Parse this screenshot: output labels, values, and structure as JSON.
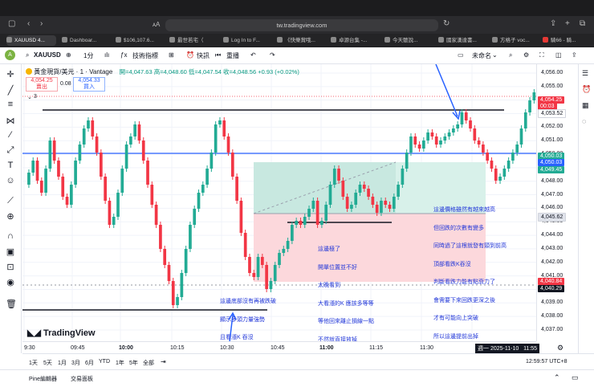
{
  "browser": {
    "url": "tw.tradingview.com",
    "tabs": [
      "XAUUSD 4...",
      "Dashboar...",
      "$106,107.6...",
      "最世若宅（",
      "Log In to F...",
      "《快樂賞哦...",
      "卓源台集 -...",
      "今天聽說...",
      "國家漢達書...",
      "方格子 voc...",
      "騎66 - 騎..."
    ]
  },
  "toolbar": {
    "symbol": "XAUUSD",
    "interval": "1分",
    "indicators": "技術指標",
    "alert": "快訊",
    "replay": "重播",
    "unnamed": "未命名"
  },
  "legend": {
    "title": "黃金現貨/美元 · 1 · Vantage",
    "ohlc": "開=4,047.63 高=4,048.60 低=4,047.54 收=4,048.56 +0.93 (+0.02%)",
    "sell_price": "4,054.25",
    "sell_label": "賣出",
    "spread": "0.08",
    "buy_price": "4,054.33",
    "buy_label": "買入",
    "indicator_count": "3"
  },
  "price_axis": {
    "ticks": [
      "4,056.00",
      "4,055.00",
      "4,054.00",
      "4,053.00",
      "4,052.00",
      "4,051.00",
      "4,050.00",
      "4,049.00",
      "4,048.00",
      "4,047.00",
      "4,046.00",
      "4,045.00",
      "4,044.00",
      "4,043.00",
      "4,042.00",
      "4,041.00",
      "4,040.00",
      "4,039.00",
      "4,038.00",
      "4,037.00"
    ],
    "badges": [
      {
        "text": "4,054.25",
        "color": "#f23645"
      },
      {
        "text": "00:03",
        "color": "#f23645"
      },
      {
        "text": "4,053.52",
        "color": "#ffffff"
      },
      {
        "text": "4,050.03",
        "color": "#22ab94"
      },
      {
        "text": "4,050.03",
        "color": "#2962ff"
      },
      {
        "text": "4,049.45",
        "color": "#22ab94"
      },
      {
        "text": "4,045.62",
        "color": "#e0e3eb"
      },
      {
        "text": "4,040.84",
        "color": "#f23645"
      },
      {
        "text": "4,040.29",
        "color": "#131722"
      }
    ]
  },
  "time_axis": {
    "ticks": [
      "9:30",
      "09:45",
      "10:00",
      "10:15",
      "10:30",
      "10:45",
      "11:00",
      "11:15",
      "11:30"
    ],
    "cursor_label": "週一 2025-11-10   11:55"
  },
  "annotations": {
    "bottom_left": [
      "這邊底部沒有再被跌破",
      "顯示多頭力量強勢",
      "且看漲K 吞沒"
    ],
    "middle": [
      "這邊極了",
      "開單位置並不好",
      "太晚看到",
      "大看漲的K 應該多等等",
      "等他回來離止損線一點",
      "不然就直接放掉"
    ],
    "right": [
      "這邊價格雖然有越來越高",
      "但回跌的次數有變多",
      "同時過了這根就發有頸到前高",
      "頂部看跌K吞沒",
      "判斷看跌力能有點衰力了",
      "會需要下來回跌更深之後",
      "才有可能向上突破",
      "所以這邊提前出掉"
    ]
  },
  "bottom": {
    "ranges": [
      "1天",
      "5天",
      "1月",
      "3月",
      "6月",
      "YTD",
      "1年",
      "5年",
      "全部"
    ],
    "clock": "12:59:57 UTC+8",
    "panels": [
      "Pine編輯器",
      "交易面板"
    ],
    "logo": "TradingView"
  }
}
